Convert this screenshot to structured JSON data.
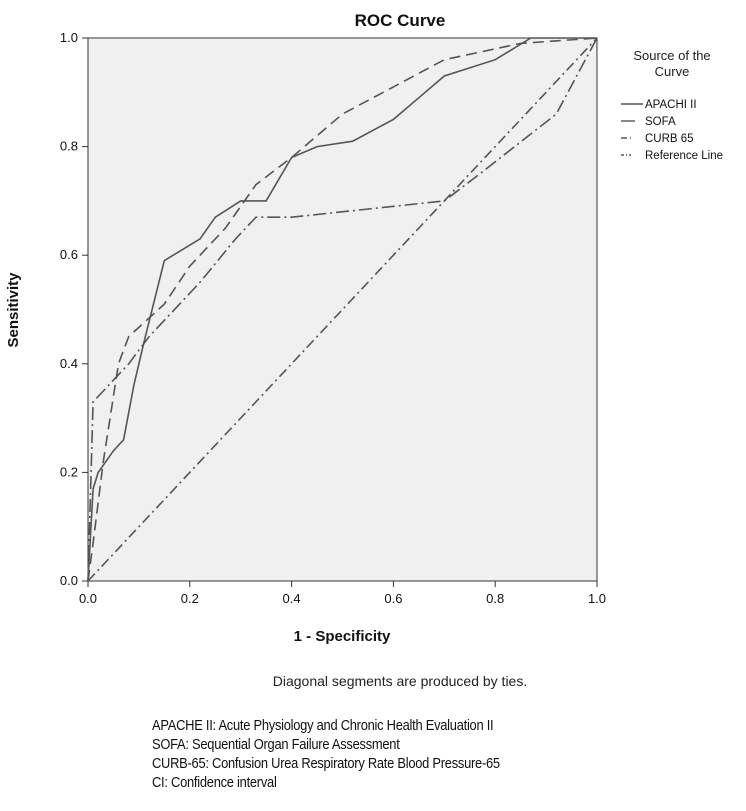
{
  "chart_data": {
    "type": "line",
    "title": "ROC Curve",
    "xlabel": "1 - Specificity",
    "ylabel": "Sensitivity",
    "xlim": [
      0.0,
      1.0
    ],
    "ylim": [
      0.0,
      1.0
    ],
    "x_ticks": [
      "0.0",
      "0.2",
      "0.4",
      "0.6",
      "0.8",
      "1.0"
    ],
    "y_ticks": [
      "0.0",
      "0.2",
      "0.4",
      "0.6",
      "0.8",
      "1.0"
    ],
    "grid": false,
    "legend_title": "Source of the Curve",
    "legend_position": "right",
    "series": [
      {
        "name": "APACHI II",
        "style": "solid",
        "x": [
          0.0,
          0.01,
          0.02,
          0.05,
          0.07,
          0.09,
          0.11,
          0.15,
          0.22,
          0.25,
          0.3,
          0.35,
          0.4,
          0.45,
          0.52,
          0.6,
          0.65,
          0.7,
          0.8,
          0.87,
          1.0
        ],
        "y": [
          0.0,
          0.17,
          0.2,
          0.24,
          0.26,
          0.36,
          0.44,
          0.59,
          0.63,
          0.67,
          0.7,
          0.7,
          0.78,
          0.8,
          0.81,
          0.85,
          0.89,
          0.93,
          0.96,
          1.0,
          1.0
        ]
      },
      {
        "name": "SOFA",
        "style": "long-dash",
        "x": [
          0.0,
          0.01,
          0.03,
          0.06,
          0.08,
          0.15,
          0.2,
          0.27,
          0.33,
          0.4,
          0.5,
          0.6,
          0.7,
          0.85,
          1.0
        ],
        "y": [
          0.0,
          0.07,
          0.22,
          0.4,
          0.45,
          0.51,
          0.58,
          0.65,
          0.73,
          0.78,
          0.86,
          0.91,
          0.96,
          0.99,
          1.0
        ]
      },
      {
        "name": "CURB 65",
        "style": "dash-dot",
        "x": [
          0.0,
          0.01,
          0.03,
          0.08,
          0.12,
          0.22,
          0.29,
          0.33,
          0.4,
          0.7,
          0.77,
          0.92,
          1.0
        ],
        "y": [
          0.0,
          0.33,
          0.35,
          0.4,
          0.45,
          0.55,
          0.63,
          0.67,
          0.67,
          0.7,
          0.75,
          0.86,
          1.0
        ]
      },
      {
        "name": "Reference Line",
        "style": "reference",
        "x": [
          0.0,
          1.0
        ],
        "y": [
          0.0,
          1.0
        ]
      }
    ],
    "annotation": "Diagonal segments are produced by ties."
  },
  "footnotes": [
    "APACHE II: Acute Physiology and Chronic Health Evaluation II",
    "SOFA: Sequential Organ Failure Assessment",
    "CURB-65: Confusion Urea Respiratory Rate Blood Pressure-65",
    "CI: Confidence interval"
  ],
  "colors": {
    "plot_background": "#f0f0f0",
    "line": "#555555",
    "axis": "#333333",
    "text": "#111111"
  }
}
